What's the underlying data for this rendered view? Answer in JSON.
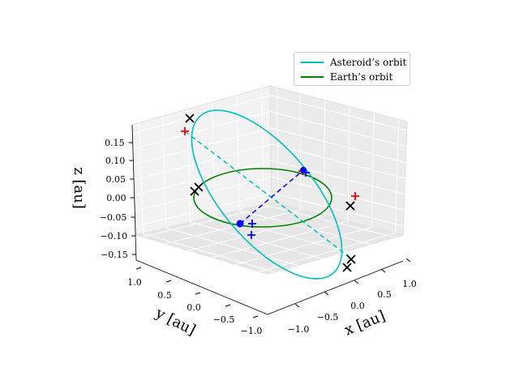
{
  "chart_data": {
    "type": "line",
    "projection": "3d",
    "axes": {
      "x": {
        "label": "x [au]",
        "ticks": [
          "−1.0",
          "−0.5",
          "0.0",
          "0.5",
          "1.0"
        ],
        "range": [
          -1.1,
          1.1
        ]
      },
      "y": {
        "label": "y [au]",
        "ticks": [
          "1.0",
          "0.5",
          "0.0",
          "−0.5",
          "−1.0"
        ],
        "range": [
          -1.1,
          1.1
        ]
      },
      "z": {
        "label": "z [au]",
        "ticks": [
          "0.15",
          "0.10",
          "0.05",
          "0.00",
          "−0.05",
          "−0.10",
          "−0.15"
        ],
        "range": [
          -0.17,
          0.17
        ]
      }
    },
    "grid": true,
    "legend_position": "top-right",
    "series": [
      {
        "name": "Asteroid’s orbit",
        "color": "#00bfbf"
      },
      {
        "name": "Earth’s orbit",
        "color": "#008000"
      }
    ],
    "markers": {
      "earth_positions": {
        "color": "#0000ff",
        "description": "blue dots on Earth's orbit"
      },
      "node_line_color": "#0000ff",
      "apsis_line_color": "#00bfbf",
      "red_cross_color": "#ff0000",
      "black_x_color": "#000000",
      "blue_plus_color": "#0000ff"
    }
  }
}
